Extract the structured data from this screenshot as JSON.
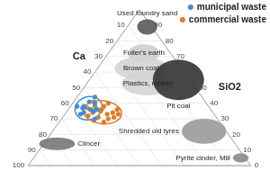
{
  "chart_data": {
    "type": "ternary",
    "axes": [
      {
        "label": "Ca",
        "lim": [
          0,
          100
        ],
        "ticks": [
          10,
          20,
          30,
          40,
          50,
          60,
          70,
          80,
          90,
          100
        ]
      },
      {
        "label": "SiO2",
        "lim": [
          0,
          100
        ],
        "ticks": [
          0,
          10,
          20,
          30,
          40,
          50,
          60,
          70,
          80,
          90
        ]
      }
    ],
    "grid": true,
    "legend": "upper right",
    "series": [
      {
        "name": "municipal waste",
        "color": "#3d8fd8",
        "marker": "circle",
        "Ca": [
          56,
          52,
          58,
          54,
          60,
          50,
          55,
          57,
          53,
          59,
          51,
          48
        ],
        "SiO2": [
          38,
          41,
          34,
          36,
          33,
          40,
          30,
          37,
          35,
          38,
          36,
          44
        ]
      },
      {
        "name": "commercial waste",
        "color": "#e07b28",
        "marker": "circle",
        "Ca": [
          50,
          47,
          53,
          45,
          49,
          52,
          44,
          56,
          48,
          51,
          46,
          54,
          42,
          50,
          57,
          55,
          43,
          49
        ],
        "SiO2": [
          35,
          38,
          31,
          34,
          30,
          28,
          40,
          29,
          33,
          38,
          31,
          34,
          36,
          41,
          32,
          37,
          33,
          36
        ]
      }
    ],
    "regions": [
      {
        "name": "Used foundry sand",
        "color": "#5a5a5a",
        "Ca": [
          0,
          4
        ],
        "SiO2": [
          84,
          94
        ]
      },
      {
        "name": "Fuller's earth",
        "color": "#cfcfcf",
        "Ca": [
          8,
          16
        ],
        "SiO2": [
          66,
          78
        ]
      },
      {
        "name": "Brown coal",
        "color": "#d4d4d4",
        "Ca": [
          10,
          26
        ],
        "SiO2": [
          55,
          70
        ]
      },
      {
        "name": "Plastics, rubber",
        "color": "#d4d4d4",
        "Ca": [
          12,
          28
        ],
        "SiO2": [
          45,
          60
        ]
      },
      {
        "name": "Pit coal",
        "color": "#333333",
        "Ca": [
          0,
          10
        ],
        "SiO2": [
          42,
          68
        ]
      },
      {
        "name": "Shredded old tyres",
        "color": "#9a9a9a",
        "Ca": [
          4,
          16
        ],
        "SiO2": [
          14,
          30
        ]
      },
      {
        "name": "Pyrite cinder, Mill",
        "color": "#8a8a8a",
        "Ca": [
          0,
          4
        ],
        "SiO2": [
          2,
          8
        ]
      },
      {
        "name": "Clincer",
        "color": "#777777",
        "Ca": [
          74,
          86
        ],
        "SiO2": [
          10,
          18
        ]
      }
    ]
  }
}
